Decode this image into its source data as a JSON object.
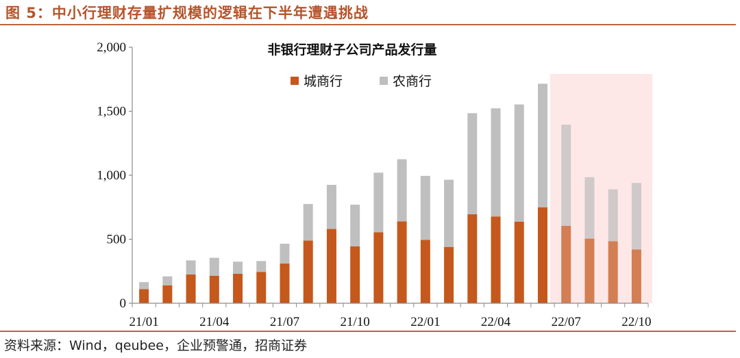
{
  "figure": {
    "title": "图 5：中小行理财存量扩规模的逻辑在下半年遭遇挑战",
    "source": "资料来源：Wind，qeubee，企业预警通，招商证券"
  },
  "colors": {
    "accent": "#b5542b",
    "series1": "#c5581c",
    "series2": "#bfbfbf",
    "highlight": "#fde3e1"
  },
  "chart_data": {
    "type": "bar",
    "stacked": true,
    "title": "非银行理财子公司产品发行量",
    "xlabel": "",
    "ylabel": "",
    "ylim": [
      0,
      2000
    ],
    "yticks": [
      0,
      500,
      1000,
      1500,
      2000
    ],
    "ytick_labels": [
      "0",
      "500",
      "1,000",
      "1,500",
      "2,000"
    ],
    "categories": [
      "21/01",
      "21/02",
      "21/03",
      "21/04",
      "21/05",
      "21/06",
      "21/07",
      "21/08",
      "21/09",
      "21/10",
      "21/11",
      "21/12",
      "22/01",
      "22/02",
      "22/03",
      "22/04",
      "22/05",
      "22/06",
      "22/07",
      "22/08",
      "22/09",
      "22/10"
    ],
    "xtick_labels": [
      "21/01",
      "21/04",
      "21/07",
      "21/10",
      "22/01",
      "22/04",
      "22/07",
      "22/10"
    ],
    "highlight_range": [
      "22/07",
      "22/10"
    ],
    "legend_position": "upper-center",
    "series": [
      {
        "name": "城商行",
        "values": [
          110,
          140,
          225,
          215,
          230,
          245,
          310,
          490,
          580,
          445,
          555,
          640,
          495,
          440,
          695,
          678,
          638,
          750,
          605,
          505,
          485,
          420
        ]
      },
      {
        "name": "农商行",
        "values": [
          55,
          70,
          110,
          140,
          95,
          85,
          155,
          285,
          345,
          325,
          465,
          485,
          500,
          525,
          790,
          845,
          915,
          965,
          790,
          480,
          405,
          520
        ]
      }
    ]
  }
}
